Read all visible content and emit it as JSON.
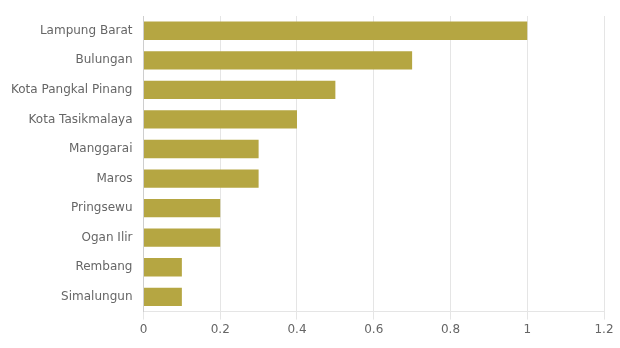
{
  "chart_data": {
    "type": "bar",
    "orientation": "horizontal",
    "categories": [
      "Simalungun",
      "Rembang",
      "Ogan Ilir",
      "Pringsewu",
      "Maros",
      "Manggarai",
      "Kota Tasikmalaya",
      "Kota Pangkal Pinang",
      "Bulungan",
      "Lampung Barat"
    ],
    "values": [
      0.1,
      0.1,
      0.2,
      0.2,
      0.3,
      0.3,
      0.4,
      0.5,
      0.7,
      1
    ],
    "color": "#b5a642",
    "xlim": [
      0,
      1.2
    ],
    "xticks": [
      0,
      0.2,
      0.4,
      0.6,
      0.8,
      1,
      1.2
    ],
    "grid": true
  }
}
